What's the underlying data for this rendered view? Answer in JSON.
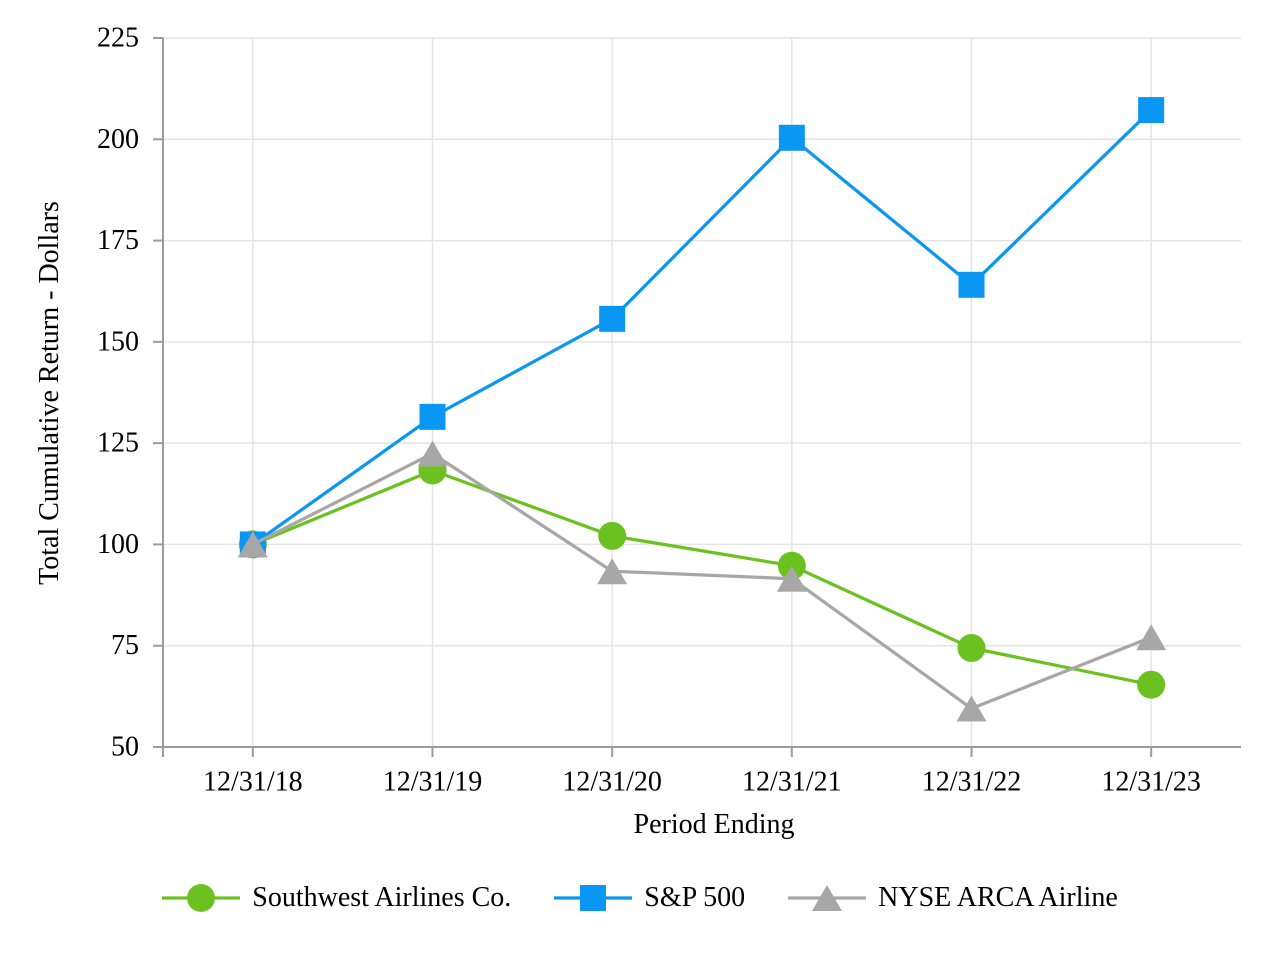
{
  "chart_data": {
    "type": "line",
    "title": "",
    "xlabel": "Period Ending",
    "ylabel": "Total Cumulative Return - Dollars",
    "categories": [
      "12/31/18",
      "12/31/19",
      "12/31/20",
      "12/31/21",
      "12/31/22",
      "12/31/23"
    ],
    "series": [
      {
        "name": "Southwest Airlines Co.",
        "marker": "circle",
        "color": "#6BC120",
        "values": [
          100.0,
          118.25,
          102.11,
          94.75,
          74.43,
          65.37
        ]
      },
      {
        "name": "S&P 500",
        "marker": "square",
        "color": "#0A97F3",
        "values": [
          100.0,
          131.49,
          155.68,
          200.37,
          164.08,
          207.21
        ]
      },
      {
        "name": "NYSE ARCA Airline",
        "marker": "triangle",
        "color": "#A7A7A7",
        "values": [
          100.0,
          122.43,
          93.39,
          91.54,
          59.5,
          77.09
        ]
      }
    ],
    "y_ticks": [
      50,
      75,
      100,
      125,
      150,
      175,
      200,
      225
    ],
    "ylim": [
      50,
      225
    ],
    "grid": true,
    "legend_position": "bottom",
    "colors": {
      "gridline": "#E4E4E4",
      "axis": "#9B9B9B",
      "text": "#000000",
      "background": "#FFFFFF"
    }
  }
}
